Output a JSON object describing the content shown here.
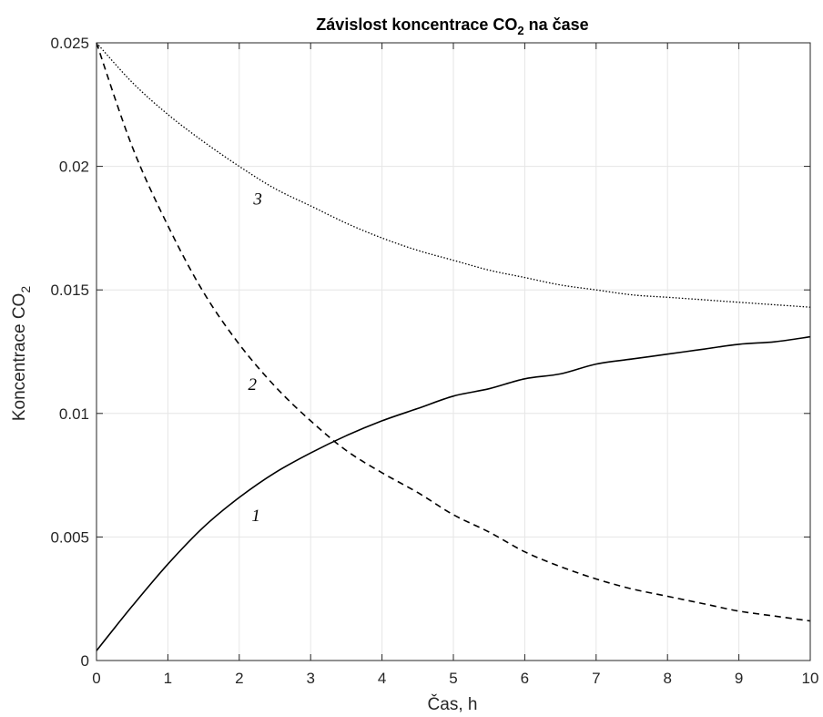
{
  "chart_data": {
    "type": "line",
    "title": "Závislost koncentrace CO",
    "title_sub": "2",
    "title_suffix": " na čase",
    "xlabel": "Čas, h",
    "ylabel": "Koncentrace CO",
    "ylabel_sub": "2",
    "xlim": [
      0,
      10
    ],
    "ylim": [
      0,
      0.025
    ],
    "x_ticks": [
      0,
      1,
      2,
      3,
      4,
      5,
      6,
      7,
      8,
      9,
      10
    ],
    "x_tick_labels": [
      "0",
      "1",
      "2",
      "3",
      "4",
      "5",
      "6",
      "7",
      "8",
      "9",
      "10"
    ],
    "y_ticks": [
      0,
      0.005,
      0.01,
      0.015,
      0.02,
      0.025
    ],
    "y_tick_labels": [
      "0",
      "0.005",
      "0.01",
      "0.015",
      "0.02",
      "0.025"
    ],
    "grid": true,
    "x": [
      0,
      0.5,
      1,
      1.5,
      2,
      2.5,
      3,
      3.5,
      4,
      4.5,
      5,
      5.5,
      6,
      6.5,
      7,
      7.5,
      8,
      8.5,
      9,
      9.5,
      10
    ],
    "series": [
      {
        "label": "1",
        "line_style": "solid",
        "values": [
          0.0004,
          0.0022,
          0.0039,
          0.0054,
          0.0066,
          0.0076,
          0.0084,
          0.0091,
          0.0097,
          0.0102,
          0.0107,
          0.011,
          0.0114,
          0.0116,
          0.012,
          0.0122,
          0.0124,
          0.0126,
          0.0128,
          0.0129,
          0.0131
        ]
      },
      {
        "label": "2",
        "line_style": "dashed",
        "values": [
          0.025,
          0.0208,
          0.0176,
          0.0149,
          0.0128,
          0.0111,
          0.0097,
          0.0085,
          0.0076,
          0.0068,
          0.0059,
          0.0052,
          0.0044,
          0.0038,
          0.0033,
          0.0029,
          0.0026,
          0.0023,
          0.002,
          0.0018,
          0.0016
        ]
      },
      {
        "label": "3",
        "line_style": "dotted",
        "values": [
          0.025,
          0.0234,
          0.0221,
          0.021,
          0.02,
          0.0191,
          0.0184,
          0.0177,
          0.0171,
          0.0166,
          0.0162,
          0.0158,
          0.0155,
          0.0152,
          0.015,
          0.0148,
          0.0147,
          0.0146,
          0.0145,
          0.0144,
          0.0143
        ]
      }
    ],
    "line_color": "#000000",
    "grid_color": "#e6e6e6",
    "axis_color": "#262626"
  }
}
